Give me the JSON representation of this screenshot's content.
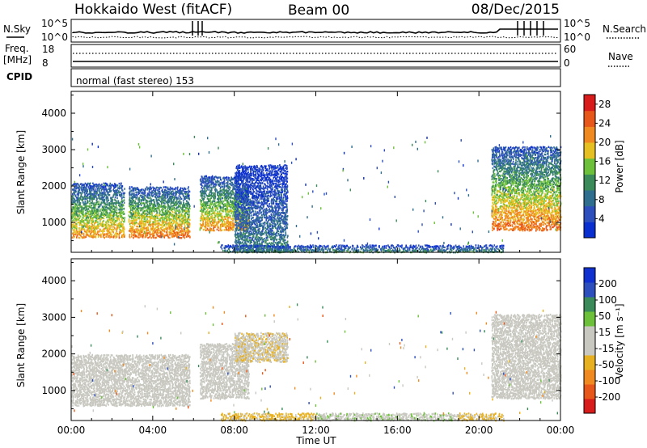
{
  "header": {
    "station": "Hokkaido West (fitACF)",
    "beam": "Beam 00",
    "date": "08/Dec/2015"
  },
  "status_panel": {
    "nsky_label": "N.Sky",
    "nsky_ticks": [
      "10^5",
      "10^0"
    ],
    "nsearch_label": "N.Search",
    "nsearch_ticks": [
      "10^5",
      "10^0"
    ],
    "freq_label_line1": "Freq.",
    "freq_label_line2": "[MHz]",
    "freq_ticks": [
      "18",
      "8"
    ],
    "nave_label": "Nave",
    "nave_ticks": [
      "60",
      "0"
    ],
    "cpid_label": "CPID",
    "cpid_text": "normal (fast stereo) 153"
  },
  "colors": {
    "power_scale": [
      "#0a2fd0",
      "#2c4fbd",
      "#2f6e8e",
      "#3a8a5a",
      "#6cc03a",
      "#e6c020",
      "#f08a20",
      "#e8571a",
      "#d81b1b"
    ],
    "velocity_scale": [
      "#d81b1b",
      "#e8571a",
      "#f08a20",
      "#e6b020",
      "#c8c8c0",
      "#c8c8c0",
      "#6cc03a",
      "#3a8a5a",
      "#2c4fbd",
      "#1030d0"
    ],
    "ground_scatter": "#c8c8c0"
  },
  "chart_data": [
    {
      "type": "heatmap",
      "name": "Power",
      "xlabel": "",
      "ylabel": "Slant Range [km]",
      "x_ticks": [
        "00:00",
        "04:00",
        "08:00",
        "12:00",
        "16:00",
        "20:00",
        "00:00"
      ],
      "y_ticks": [
        1000,
        2000,
        3000,
        4000
      ],
      "ylim": [
        180,
        4600
      ],
      "xlim_hours": [
        0,
        24
      ],
      "colorbar_label": "Power [dB]",
      "colorbar_ticks": [
        4,
        8,
        12,
        16,
        20,
        24,
        28
      ],
      "colorbar_range": [
        0,
        30
      ],
      "echo_regions": [
        {
          "t_start": 0.0,
          "t_end": 2.6,
          "range_min": 600,
          "range_max": 2100,
          "peak_db": 22
        },
        {
          "t_start": 2.8,
          "t_end": 5.8,
          "range_min": 600,
          "range_max": 2000,
          "peak_db": 24
        },
        {
          "t_start": 6.3,
          "t_end": 8.7,
          "range_min": 800,
          "range_max": 2300,
          "peak_db": 22
        },
        {
          "t_start": 8.0,
          "t_end": 10.6,
          "range_min": 200,
          "range_max": 2600,
          "peak_db": 10
        },
        {
          "t_start": 7.3,
          "t_end": 21.2,
          "range_min": 200,
          "range_max": 400,
          "peak_db": 12
        },
        {
          "t_start": 20.6,
          "t_end": 24.0,
          "range_min": 800,
          "range_max": 3100,
          "peak_db": 24
        }
      ]
    },
    {
      "type": "heatmap",
      "name": "Velocity",
      "xlabel": "Time UT",
      "ylabel": "Slant Range [km]",
      "x_ticks": [
        "00:00",
        "04:00",
        "08:00",
        "12:00",
        "16:00",
        "20:00",
        "00:00"
      ],
      "y_ticks": [
        1000,
        2000,
        3000,
        4000
      ],
      "ylim": [
        180,
        4600
      ],
      "xlim_hours": [
        0,
        24
      ],
      "colorbar_label": "Velocity [m s⁻¹]",
      "colorbar_ticks": [
        200,
        100,
        50,
        15,
        -15,
        -50,
        -100,
        -200
      ],
      "colorbar_range": [
        -250,
        250
      ],
      "echo_regions": [
        {
          "t_start": 0.0,
          "t_end": 5.8,
          "range_min": 600,
          "range_max": 2000,
          "velocity": 0
        },
        {
          "t_start": 6.3,
          "t_end": 8.7,
          "range_min": 800,
          "range_max": 2300,
          "velocity": -20
        },
        {
          "t_start": 8.0,
          "t_end": 10.6,
          "range_min": 1800,
          "range_max": 2600,
          "velocity": -40
        },
        {
          "t_start": 7.3,
          "t_end": 12.0,
          "range_min": 200,
          "range_max": 400,
          "velocity": -60
        },
        {
          "t_start": 12.0,
          "t_end": 19.0,
          "range_min": 200,
          "range_max": 400,
          "velocity": 40
        },
        {
          "t_start": 19.0,
          "t_end": 21.2,
          "range_min": 200,
          "range_max": 400,
          "velocity": -60
        },
        {
          "t_start": 20.6,
          "t_end": 24.0,
          "range_min": 800,
          "range_max": 3100,
          "velocity": 30
        }
      ]
    }
  ]
}
